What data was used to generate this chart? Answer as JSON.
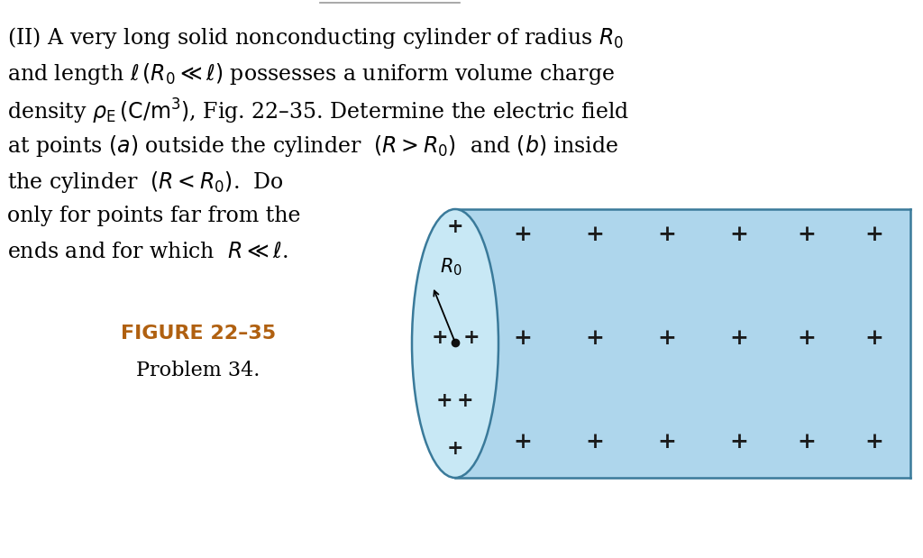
{
  "bg_color": "#ffffff",
  "cylinder_fill": "#aed6ec",
  "cylinder_fill_ellipse": "#c8e8f5",
  "cylinder_stroke": "#3a7a9a",
  "text_color": "#000000",
  "figure_label_color": "#b06010",
  "plus_color": "#1a1a1a",
  "line1": "(II) A very long solid nonconducting cylinder of radius $R_0$",
  "line2": "and length $\\ell\\,(R_0 \\ll \\ell)$ possesses a uniform volume charge",
  "line3": "density $\\rho_\\mathrm{E}\\,(\\mathrm{C/m^3})$, Fig. 22–35. Determine the electric field",
  "line4": "at points $(a)$ outside the cylinder  $(R > R_0)$  and $(b)$ inside",
  "line5": "the cylinder  $(R < R_0)$.  Do",
  "line6": "only for points far from the",
  "line7": "ends and for which  $R \\ll \\ell$.",
  "figure_label": "FIGURE 22–35",
  "problem_label": "Problem 34.",
  "font_size_main": 17,
  "font_size_plus": 18,
  "font_size_R0": 15,
  "font_size_fig": 16,
  "font_size_prob": 16
}
